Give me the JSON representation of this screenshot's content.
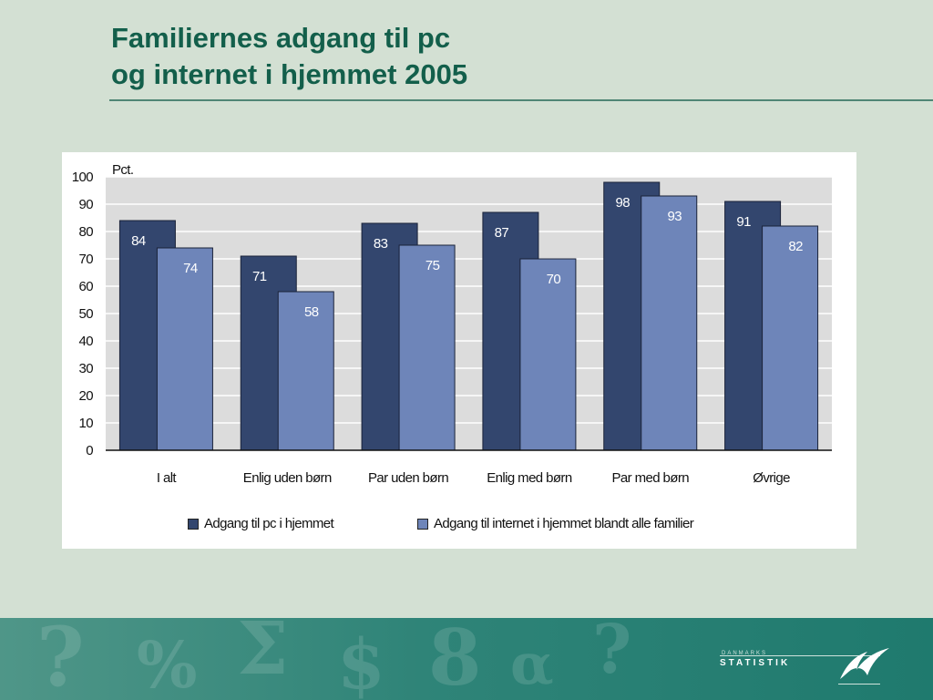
{
  "slide": {
    "title_line1": "Familiernes adgang til pc",
    "title_line2": "og internet i hjemmet 2005"
  },
  "chart_data": {
    "type": "bar",
    "unit_label": "Pct.",
    "categories": [
      "I alt",
      "Enlig uden børn",
      "Par uden børn",
      "Enlig med børn",
      "Par med børn",
      "Øvrige"
    ],
    "series": [
      {
        "name": "Adgang til pc i hjemmet",
        "color": "#33466e",
        "values": [
          84,
          71,
          83,
          87,
          98,
          91
        ]
      },
      {
        "name": "Adgang til internet i hjemmet blandt alle familier",
        "color": "#6e85b9",
        "values": [
          74,
          58,
          75,
          70,
          93,
          82
        ]
      }
    ],
    "ylim": [
      0,
      100
    ],
    "yticks": [
      0,
      10,
      20,
      30,
      40,
      50,
      60,
      70,
      80,
      90,
      100
    ],
    "grid": true,
    "legend_position": "bottom",
    "plot_background": "#dcdcdc"
  },
  "logo": {
    "small_text": "DANMARKS",
    "main_text": "STATISTIK"
  }
}
